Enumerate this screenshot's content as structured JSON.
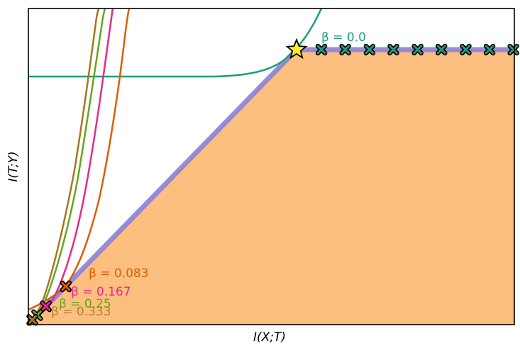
{
  "chart_data": {
    "type": "line",
    "title": "",
    "xlabel": "I(X;T)",
    "ylabel": "I(T;Y)",
    "xlim": [
      0,
      1
    ],
    "ylim": [
      0,
      1
    ],
    "grid": false,
    "ticks_visible": false,
    "legend": "none (inline annotations)",
    "region": {
      "name": "achievable region",
      "color": "#fdbf7f",
      "boundary": [
        [
          0,
          0
        ],
        [
          0.552,
          0.87
        ],
        [
          1,
          0.87
        ]
      ]
    },
    "frontier": {
      "name": "information bottleneck frontier",
      "color": "#8b82d6",
      "points": [
        [
          0,
          0
        ],
        [
          0.552,
          0.87
        ],
        [
          1,
          0.87
        ]
      ]
    },
    "optimum_star": {
      "x": 0.552,
      "y": 0.87,
      "color": "#ffee22"
    },
    "series": [
      {
        "name": "β = 0.0",
        "label": "β = 0.0",
        "color": "#1b9e77",
        "marker_x": [
          0.603,
          0.652,
          0.702,
          0.751,
          0.801,
          0.85,
          0.9,
          0.949,
          0.998
        ],
        "marker_y": 0.87
      },
      {
        "name": "β = 0.083",
        "label": "β = 0.083",
        "color": "#d95f02",
        "marker": [
          0.077,
          0.121
        ]
      },
      {
        "name": "β = 0.167",
        "label": "β = 0.167",
        "color": "#e7298a",
        "marker": [
          0.036,
          0.058
        ]
      },
      {
        "name": "β = 0.25",
        "label": "β = 0.25",
        "color": "#66a61e",
        "marker": [
          0.018,
          0.03
        ]
      },
      {
        "name": "β = 0.333",
        "label": "β = 0.333",
        "color": "#a6761d",
        "marker": [
          0.008,
          0.015
        ]
      }
    ]
  },
  "labels": {
    "xlabel": "I(X;T)",
    "ylabel": "I(T;Y)",
    "b0": "β = 0.0",
    "b083": "β = 0.083",
    "b167": "β = 0.167",
    "b25": "β = 0.25",
    "b333": "β = 0.333"
  }
}
